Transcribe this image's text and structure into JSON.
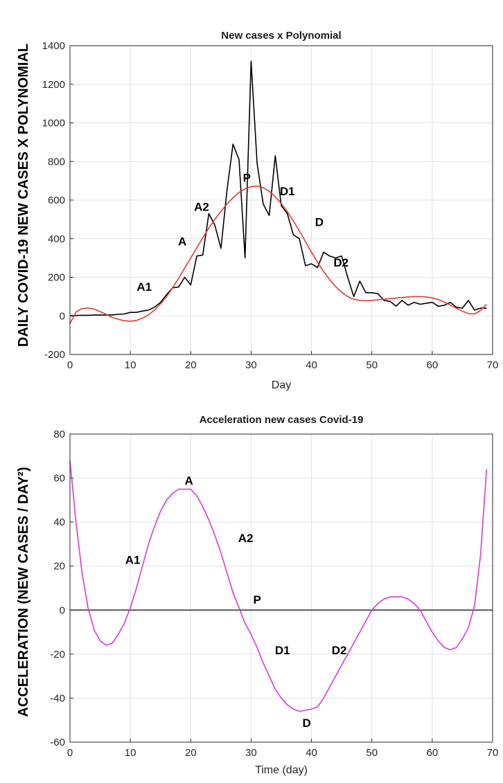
{
  "chart_data": [
    {
      "type": "line",
      "title": "New cases x Polynomial",
      "xlabel": "Day",
      "ylabel": "DAILY COVID-19 NEW CASES X POLYNOMIAL",
      "xlim": [
        0,
        70
      ],
      "ylim": [
        -200,
        1400
      ],
      "xticks": [
        "0",
        "10",
        "20",
        "30",
        "40",
        "50",
        "60",
        "70"
      ],
      "yticks": [
        "-200",
        "0",
        "200",
        "400",
        "600",
        "800",
        "1000",
        "1200",
        "1400"
      ],
      "grid": true,
      "series": [
        {
          "color": "#000000",
          "x": [
            0,
            1,
            2,
            3,
            4,
            5,
            6,
            7,
            8,
            9,
            10,
            11,
            12,
            13,
            14,
            15,
            16,
            17,
            18,
            19,
            20,
            21,
            22,
            23,
            24,
            25,
            26,
            27,
            28,
            29,
            30,
            31,
            32,
            33,
            34,
            35,
            36,
            37,
            38,
            39,
            40,
            41,
            42,
            43,
            44,
            45,
            46,
            47,
            48,
            49,
            50,
            51,
            52,
            53,
            54,
            55,
            56,
            57,
            58,
            59,
            60,
            61,
            62,
            63,
            64,
            65,
            66,
            67,
            68,
            69
          ],
          "values": [
            0,
            2,
            3,
            3,
            4,
            4,
            5,
            5,
            8,
            10,
            18,
            18,
            25,
            30,
            45,
            70,
            110,
            145,
            150,
            200,
            160,
            310,
            315,
            530,
            470,
            350,
            650,
            890,
            810,
            300,
            1320,
            790,
            580,
            520,
            830,
            570,
            530,
            420,
            400,
            260,
            270,
            250,
            330,
            310,
            300,
            310,
            200,
            100,
            180,
            120,
            120,
            115,
            80,
            75,
            50,
            80,
            55,
            70,
            60,
            65,
            70,
            50,
            55,
            70,
            45,
            40,
            80,
            30,
            40,
            40
          ]
        },
        {
          "color": "#e03a2e",
          "x": [
            0,
            1,
            2,
            3,
            4,
            5,
            6,
            7,
            8,
            9,
            10,
            11,
            12,
            13,
            14,
            15,
            16,
            17,
            18,
            19,
            20,
            21,
            22,
            23,
            24,
            25,
            26,
            27,
            28,
            29,
            30,
            31,
            32,
            33,
            34,
            35,
            36,
            37,
            38,
            39,
            40,
            41,
            42,
            43,
            44,
            45,
            46,
            47,
            48,
            49,
            50,
            51,
            52,
            53,
            54,
            55,
            56,
            57,
            58,
            59,
            60,
            61,
            62,
            63,
            64,
            65,
            66,
            67,
            68,
            69
          ],
          "values": [
            -40,
            20,
            38,
            40,
            35,
            22,
            8,
            -8,
            -18,
            -25,
            -28,
            -24,
            -12,
            5,
            30,
            62,
            100,
            145,
            195,
            248,
            300,
            352,
            405,
            455,
            500,
            542,
            580,
            612,
            640,
            658,
            670,
            672,
            665,
            645,
            618,
            582,
            540,
            492,
            440,
            385,
            330,
            278,
            230,
            188,
            152,
            122,
            100,
            86,
            80,
            78,
            80,
            83,
            86,
            89,
            92,
            95,
            98,
            100,
            100,
            98,
            93,
            85,
            72,
            56,
            40,
            24,
            12,
            10,
            28,
            60
          ]
        }
      ],
      "annotations": [
        {
          "text": "A1",
          "x": 12.3,
          "y": 130
        },
        {
          "text": "A",
          "x": 18.6,
          "y": 365
        },
        {
          "text": "A2",
          "x": 21.8,
          "y": 545
        },
        {
          "text": "P",
          "x": 29.3,
          "y": 695
        },
        {
          "text": "D1",
          "x": 36.0,
          "y": 625
        },
        {
          "text": "D",
          "x": 41.3,
          "y": 465
        },
        {
          "text": "D2",
          "x": 44.9,
          "y": 255
        }
      ]
    },
    {
      "type": "line",
      "title": "Acceleration new cases Covid-19",
      "xlabel": "Time (day)",
      "ylabel": "ACCELERATION (NEW CASES / DAY²)",
      "xlim": [
        0,
        70
      ],
      "ylim": [
        -60,
        80
      ],
      "xticks": [
        "0",
        "10",
        "20",
        "30",
        "40",
        "50",
        "60",
        "70"
      ],
      "yticks": [
        "-60",
        "-40",
        "-20",
        "0",
        "20",
        "40",
        "60",
        "80"
      ],
      "grid": true,
      "zero_line": true,
      "series": [
        {
          "color": "#d63ad6",
          "x": [
            0,
            1,
            2,
            3,
            4,
            5,
            6,
            7,
            8,
            9,
            10,
            11,
            12,
            13,
            14,
            15,
            16,
            17,
            18,
            19,
            20,
            21,
            22,
            23,
            24,
            25,
            26,
            27,
            28,
            29,
            30,
            31,
            32,
            33,
            34,
            35,
            36,
            37,
            38,
            39,
            40,
            41,
            42,
            43,
            44,
            45,
            46,
            47,
            48,
            49,
            50,
            51,
            52,
            53,
            54,
            55,
            56,
            57,
            58,
            59,
            60,
            61,
            62,
            63,
            64,
            65,
            66,
            67,
            68,
            69
          ],
          "values": [
            68,
            40,
            17,
            1,
            -9,
            -14,
            -16,
            -15,
            -11,
            -6,
            1,
            10,
            20,
            30,
            38,
            45,
            50,
            53,
            55,
            55,
            55,
            52,
            47,
            41,
            34,
            26,
            17,
            8,
            1,
            -6,
            -11,
            -17,
            -24,
            -30,
            -36,
            -40,
            -43,
            -45,
            -46,
            -45.5,
            -45,
            -44,
            -40,
            -35,
            -30,
            -25,
            -20,
            -15,
            -10,
            -5,
            0,
            3,
            5,
            6,
            6,
            6,
            5,
            3,
            0,
            -5,
            -10,
            -14,
            -17,
            -18,
            -17,
            -13,
            -8,
            2,
            25,
            64
          ]
        }
      ],
      "annotations": [
        {
          "text": "A1",
          "x": 10.4,
          "y": 21
        },
        {
          "text": "A",
          "x": 19.7,
          "y": 57
        },
        {
          "text": "A2",
          "x": 29.1,
          "y": 31
        },
        {
          "text": "P",
          "x": 31.0,
          "y": 3
        },
        {
          "text": "D1",
          "x": 35.2,
          "y": -20
        },
        {
          "text": "D",
          "x": 39.2,
          "y": -53
        },
        {
          "text": "D2",
          "x": 44.6,
          "y": -20
        }
      ]
    }
  ]
}
